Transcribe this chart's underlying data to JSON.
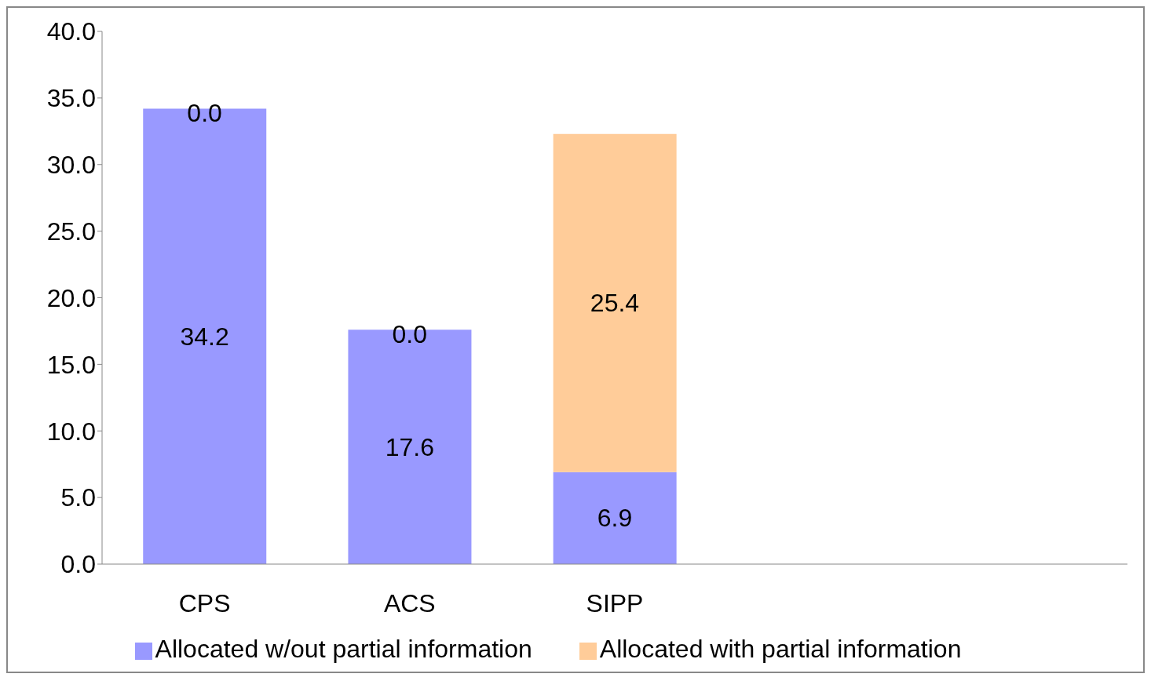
{
  "chart_data": {
    "type": "bar",
    "stacked": true,
    "categories": [
      "CPS",
      "ACS",
      "SIPP",
      null,
      null
    ],
    "series": [
      {
        "name": "Allocated w/out partial information",
        "color": "#9999ff",
        "values": [
          34.2,
          17.6,
          6.9,
          null,
          null
        ],
        "value_labels": [
          "34.2",
          "17.6",
          "6.9",
          null,
          null
        ]
      },
      {
        "name": "Allocated with partial information",
        "color": "#ffcc99",
        "values": [
          0.0,
          0.0,
          25.4,
          null,
          null
        ],
        "value_labels": [
          "0.0",
          "0.0",
          "25.4",
          null,
          null
        ]
      }
    ],
    "ylim": [
      0,
      40
    ],
    "yticks": [
      {
        "value": 0,
        "label": "0.0"
      },
      {
        "value": 5,
        "label": "5.0"
      },
      {
        "value": 10,
        "label": "10.0"
      },
      {
        "value": 15,
        "label": "15.0"
      },
      {
        "value": 20,
        "label": "20.0"
      },
      {
        "value": 25,
        "label": "25.0"
      },
      {
        "value": 30,
        "label": "30.0"
      },
      {
        "value": 35,
        "label": "35.0"
      },
      {
        "value": 40,
        "label": "40.0"
      }
    ],
    "grid": false,
    "legend": "bottom"
  }
}
